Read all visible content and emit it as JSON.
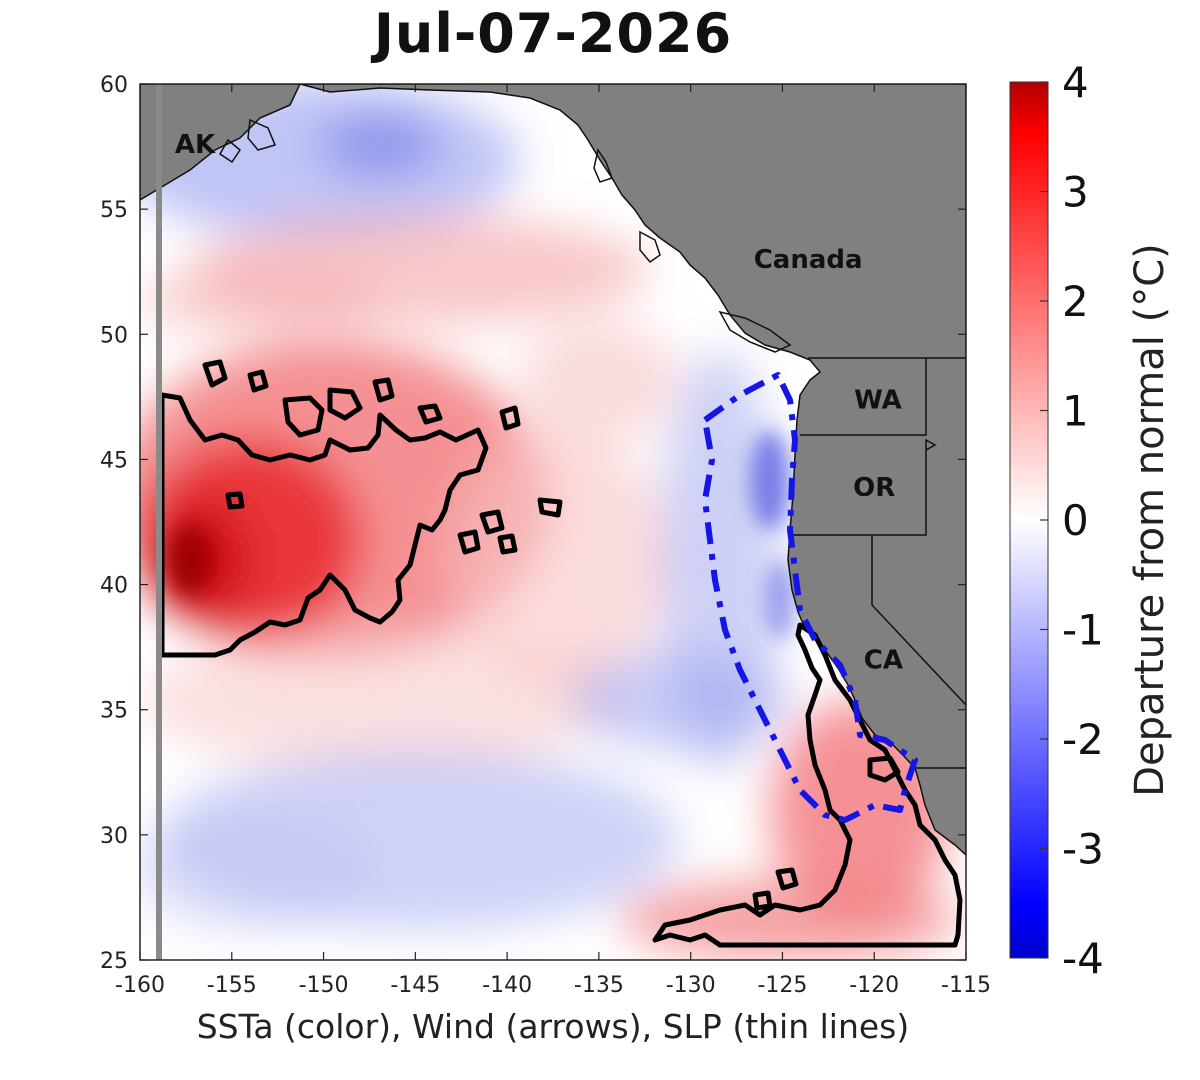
{
  "title": "Jul-07-2026",
  "map": {
    "extent": {
      "lon": [
        -160,
        -115
      ],
      "lat": [
        25,
        60
      ]
    },
    "x_ticks": [
      -160,
      -155,
      -150,
      -145,
      -140,
      -135,
      -130,
      -125,
      -120,
      -115
    ],
    "x_tick_labels": [
      "-160",
      "-155",
      "-150",
      "-145",
      "-140",
      "-135",
      "-130",
      "-125",
      "-120",
      "-115"
    ],
    "y_ticks": [
      25,
      30,
      35,
      40,
      45,
      50,
      55,
      60
    ],
    "y_tick_labels": [
      "25",
      "30",
      "35",
      "40",
      "45",
      "50",
      "55",
      "60"
    ],
    "xlabel": "SSTa (color), Wind (arrows), SLP (thin lines)",
    "region_labels": [
      {
        "text": "AK",
        "lon": -157.0,
        "lat": 57.6
      },
      {
        "text": "Canada",
        "lon": -123.6,
        "lat": 53.0
      },
      {
        "text": "WA",
        "lon": -119.8,
        "lat": 47.4
      },
      {
        "text": "OR",
        "lon": -120.0,
        "lat": 43.9
      },
      {
        "text": "CA",
        "lon": -119.5,
        "lat": 37.0
      }
    ],
    "colors": {
      "land": "#808080",
      "ocean_neutral": "#ffffff",
      "heatwave_contour": "#000000",
      "cold_contour": "#1a1aee"
    }
  },
  "colorbar": {
    "min": -4,
    "max": 4,
    "ticks": [
      4,
      3,
      2,
      1,
      0,
      -1,
      -2,
      -3,
      -4
    ],
    "tick_labels": [
      "4",
      "3",
      "2",
      "1",
      "0",
      "-1",
      "-2",
      "-3",
      "-4"
    ],
    "label": "Departure from normal (°C)",
    "stops": [
      "#0000ff",
      "#ffffff",
      "#ff0000"
    ]
  }
}
